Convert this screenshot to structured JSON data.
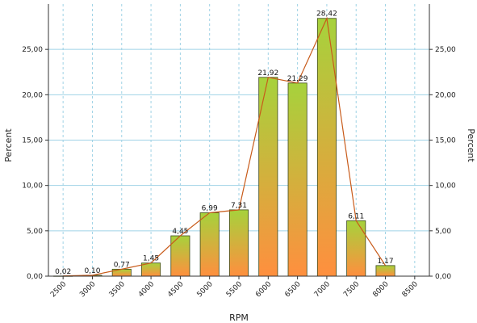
{
  "chart_data": {
    "type": "bar",
    "categories": [
      "2500",
      "3000",
      "3500",
      "4000",
      "4500",
      "5000",
      "5500",
      "6000",
      "6500",
      "7000",
      "7500",
      "8000",
      "8500"
    ],
    "series": [
      {
        "values": [
          0.02,
          0.1,
          0.77,
          1.45,
          4.45,
          6.99,
          7.31,
          21.92,
          21.29,
          28.42,
          6.11,
          1.17,
          null
        ]
      }
    ],
    "data_labels": [
      "0,02",
      "0,10",
      "0,77",
      "1,45",
      "4,45",
      "6,99",
      "7,31",
      "21,92",
      "21,29",
      "28,42",
      "6,11",
      "1,17",
      ""
    ],
    "overlay_line": "connects bar tops",
    "xlabel": "RPM",
    "ylabel_left": "Percent",
    "ylabel_right": "Percent",
    "ylim": [
      0,
      30
    ],
    "yticks": [
      0,
      5,
      10,
      15,
      20,
      25
    ],
    "ytick_labels": [
      "0,00",
      "5,00",
      "10,00",
      "15,00",
      "20,00",
      "25,00"
    ],
    "grid": "vertical dashed light-blue",
    "colors": {
      "bar_top": "#a6d23c",
      "bar_bottom": "#ff8f3e",
      "bar_stroke": "#3f4a1c",
      "line": "#c85b1a",
      "grid": "#9fd2e6"
    }
  }
}
